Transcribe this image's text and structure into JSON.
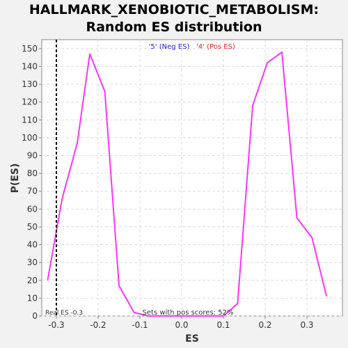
{
  "chart_data": {
    "type": "line",
    "title_lines": [
      "HALLMARK_XENOBIOTIC_METABOLISM:",
      "Random ES distribution"
    ],
    "xlabel": "ES",
    "ylabel": "P(ES)",
    "xlim": [
      -0.335,
      0.385
    ],
    "ylim": [
      0,
      155
    ],
    "grid": true,
    "x_ticks": [
      -0.3,
      -0.2,
      -0.1,
      0.0,
      0.1,
      0.2,
      0.3
    ],
    "x_tick_labels": [
      "-0.3",
      "-0.2",
      "-0.1",
      "0.0",
      "0.1",
      "0.2",
      "0.3"
    ],
    "y_ticks": [
      0,
      10,
      20,
      30,
      40,
      50,
      60,
      70,
      80,
      90,
      100,
      110,
      120,
      130,
      140,
      150
    ],
    "y_tick_labels": [
      "0",
      "10",
      "20",
      "30",
      "40",
      "50",
      "60",
      "70",
      "80",
      "90",
      "100",
      "110",
      "120",
      "130",
      "140",
      "150"
    ],
    "series": [
      {
        "color": "#ff33ff",
        "points": [
          [
            -0.321,
            20
          ],
          [
            -0.286,
            66
          ],
          [
            -0.25,
            97
          ],
          [
            -0.22,
            147
          ],
          [
            -0.184,
            126
          ],
          [
            -0.15,
            17
          ],
          [
            -0.114,
            2
          ],
          [
            -0.08,
            0
          ],
          [
            -0.04,
            0
          ],
          [
            0.0,
            0
          ],
          [
            0.04,
            0
          ],
          [
            0.1,
            0
          ],
          [
            0.134,
            7
          ],
          [
            0.17,
            118
          ],
          [
            0.205,
            142
          ],
          [
            0.24,
            148
          ],
          [
            0.276,
            55
          ],
          [
            0.312,
            44
          ],
          [
            0.347,
            11
          ]
        ]
      }
    ],
    "real_es": {
      "x": -0.3,
      "label": "Real ES -0.3"
    },
    "legend": [
      {
        "text": "'5' (Neg ES)",
        "color": "#2222ee"
      },
      {
        "text": "'4' (Pos ES)",
        "color": "#ee2222"
      }
    ],
    "annotation": "Sets with pos scores: 52%"
  }
}
